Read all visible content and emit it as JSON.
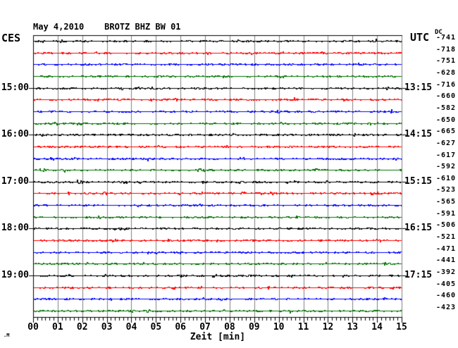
{
  "header": {
    "title": "May 4,2010    BROTZ BHZ BW 01",
    "left_axis_label": "CES",
    "right_axis_label": "UTC",
    "dc_label": "DC"
  },
  "watermark": ".M",
  "chart_data": {
    "type": "line",
    "subtype": "helicorder-seismogram",
    "title": "May 4,2010    BROTZ BHZ BW 01",
    "station": "BROTZ BHZ BW 01",
    "xlabel": "Zeit [min]",
    "x_tick_labels": [
      "00",
      "01",
      "02",
      "03",
      "04",
      "05",
      "06",
      "07",
      "08",
      "09",
      "10",
      "11",
      "12",
      "13",
      "14",
      "15"
    ],
    "x_range_minutes": [
      0,
      15
    ],
    "minor_ticks_per_minute": 6,
    "num_traces": 24,
    "rows_per_hour": 4,
    "first_labeled_row": 4,
    "labeled_row_step": 4,
    "left_time_labels": [
      "15:00",
      "16:00",
      "17:00",
      "18:00",
      "19:00"
    ],
    "right_time_labels": [
      "13:15",
      "14:15",
      "15:15",
      "16:15",
      "17:15"
    ],
    "dc_values": [
      -741,
      -718,
      -751,
      -628,
      -716,
      -660,
      -582,
      -650,
      -665,
      -627,
      -617,
      -592,
      -610,
      -523,
      -565,
      -591,
      -506,
      -521,
      -471,
      -441,
      -392,
      -405,
      -460,
      -423
    ],
    "trace_color_cycle": [
      "#000000",
      "#ff0000",
      "#0000ff",
      "#007200"
    ],
    "grid_color": "#808080",
    "border_color": "#000000",
    "background_color": "#ffffff",
    "grid": true,
    "legend": false
  }
}
